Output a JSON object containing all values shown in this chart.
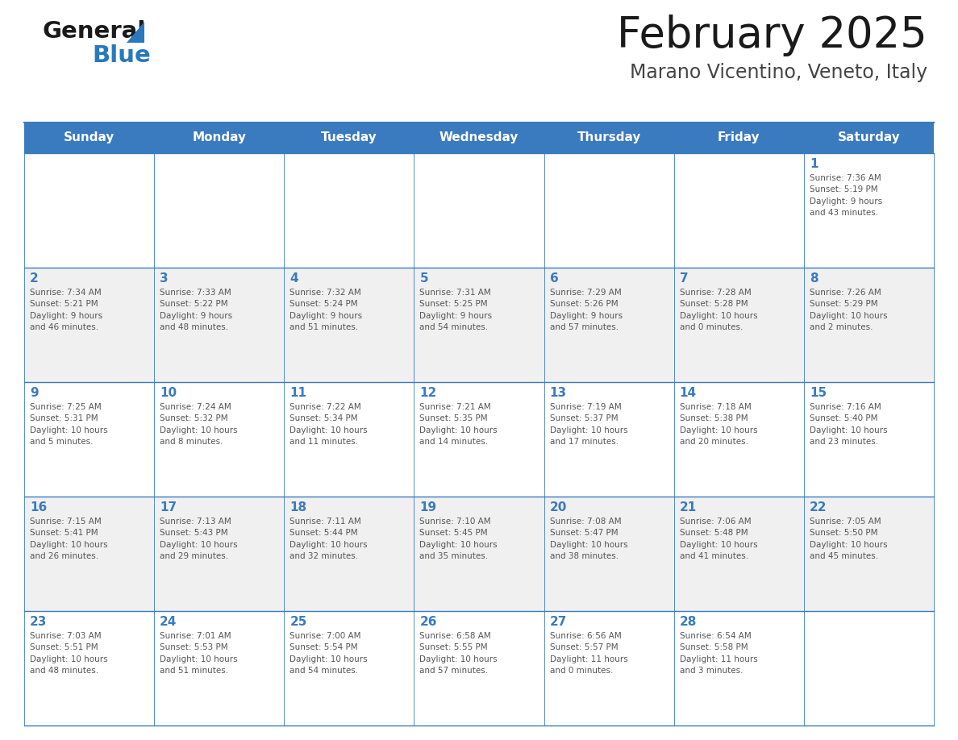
{
  "title": "February 2025",
  "subtitle": "Marano Vicentino, Veneto, Italy",
  "header_color": "#3a7abf",
  "header_text_color": "#ffffff",
  "cell_bg_color": "#ffffff",
  "alt_cell_bg_color": "#f0f0f0",
  "day_num_color": "#3a7abf",
  "text_color": "#555555",
  "border_color": "#3a7abf",
  "days_of_week": [
    "Sunday",
    "Monday",
    "Tuesday",
    "Wednesday",
    "Thursday",
    "Friday",
    "Saturday"
  ],
  "weeks": [
    [
      {
        "date": "",
        "info": ""
      },
      {
        "date": "",
        "info": ""
      },
      {
        "date": "",
        "info": ""
      },
      {
        "date": "",
        "info": ""
      },
      {
        "date": "",
        "info": ""
      },
      {
        "date": "",
        "info": ""
      },
      {
        "date": "1",
        "info": "Sunrise: 7:36 AM\nSunset: 5:19 PM\nDaylight: 9 hours\nand 43 minutes."
      }
    ],
    [
      {
        "date": "2",
        "info": "Sunrise: 7:34 AM\nSunset: 5:21 PM\nDaylight: 9 hours\nand 46 minutes."
      },
      {
        "date": "3",
        "info": "Sunrise: 7:33 AM\nSunset: 5:22 PM\nDaylight: 9 hours\nand 48 minutes."
      },
      {
        "date": "4",
        "info": "Sunrise: 7:32 AM\nSunset: 5:24 PM\nDaylight: 9 hours\nand 51 minutes."
      },
      {
        "date": "5",
        "info": "Sunrise: 7:31 AM\nSunset: 5:25 PM\nDaylight: 9 hours\nand 54 minutes."
      },
      {
        "date": "6",
        "info": "Sunrise: 7:29 AM\nSunset: 5:26 PM\nDaylight: 9 hours\nand 57 minutes."
      },
      {
        "date": "7",
        "info": "Sunrise: 7:28 AM\nSunset: 5:28 PM\nDaylight: 10 hours\nand 0 minutes."
      },
      {
        "date": "8",
        "info": "Sunrise: 7:26 AM\nSunset: 5:29 PM\nDaylight: 10 hours\nand 2 minutes."
      }
    ],
    [
      {
        "date": "9",
        "info": "Sunrise: 7:25 AM\nSunset: 5:31 PM\nDaylight: 10 hours\nand 5 minutes."
      },
      {
        "date": "10",
        "info": "Sunrise: 7:24 AM\nSunset: 5:32 PM\nDaylight: 10 hours\nand 8 minutes."
      },
      {
        "date": "11",
        "info": "Sunrise: 7:22 AM\nSunset: 5:34 PM\nDaylight: 10 hours\nand 11 minutes."
      },
      {
        "date": "12",
        "info": "Sunrise: 7:21 AM\nSunset: 5:35 PM\nDaylight: 10 hours\nand 14 minutes."
      },
      {
        "date": "13",
        "info": "Sunrise: 7:19 AM\nSunset: 5:37 PM\nDaylight: 10 hours\nand 17 minutes."
      },
      {
        "date": "14",
        "info": "Sunrise: 7:18 AM\nSunset: 5:38 PM\nDaylight: 10 hours\nand 20 minutes."
      },
      {
        "date": "15",
        "info": "Sunrise: 7:16 AM\nSunset: 5:40 PM\nDaylight: 10 hours\nand 23 minutes."
      }
    ],
    [
      {
        "date": "16",
        "info": "Sunrise: 7:15 AM\nSunset: 5:41 PM\nDaylight: 10 hours\nand 26 minutes."
      },
      {
        "date": "17",
        "info": "Sunrise: 7:13 AM\nSunset: 5:43 PM\nDaylight: 10 hours\nand 29 minutes."
      },
      {
        "date": "18",
        "info": "Sunrise: 7:11 AM\nSunset: 5:44 PM\nDaylight: 10 hours\nand 32 minutes."
      },
      {
        "date": "19",
        "info": "Sunrise: 7:10 AM\nSunset: 5:45 PM\nDaylight: 10 hours\nand 35 minutes."
      },
      {
        "date": "20",
        "info": "Sunrise: 7:08 AM\nSunset: 5:47 PM\nDaylight: 10 hours\nand 38 minutes."
      },
      {
        "date": "21",
        "info": "Sunrise: 7:06 AM\nSunset: 5:48 PM\nDaylight: 10 hours\nand 41 minutes."
      },
      {
        "date": "22",
        "info": "Sunrise: 7:05 AM\nSunset: 5:50 PM\nDaylight: 10 hours\nand 45 minutes."
      }
    ],
    [
      {
        "date": "23",
        "info": "Sunrise: 7:03 AM\nSunset: 5:51 PM\nDaylight: 10 hours\nand 48 minutes."
      },
      {
        "date": "24",
        "info": "Sunrise: 7:01 AM\nSunset: 5:53 PM\nDaylight: 10 hours\nand 51 minutes."
      },
      {
        "date": "25",
        "info": "Sunrise: 7:00 AM\nSunset: 5:54 PM\nDaylight: 10 hours\nand 54 minutes."
      },
      {
        "date": "26",
        "info": "Sunrise: 6:58 AM\nSunset: 5:55 PM\nDaylight: 10 hours\nand 57 minutes."
      },
      {
        "date": "27",
        "info": "Sunrise: 6:56 AM\nSunset: 5:57 PM\nDaylight: 11 hours\nand 0 minutes."
      },
      {
        "date": "28",
        "info": "Sunrise: 6:54 AM\nSunset: 5:58 PM\nDaylight: 11 hours\nand 3 minutes."
      },
      {
        "date": "",
        "info": ""
      }
    ]
  ],
  "title_fontsize": 38,
  "subtitle_fontsize": 17,
  "header_fontsize": 11,
  "date_fontsize": 11,
  "info_fontsize": 7.5
}
